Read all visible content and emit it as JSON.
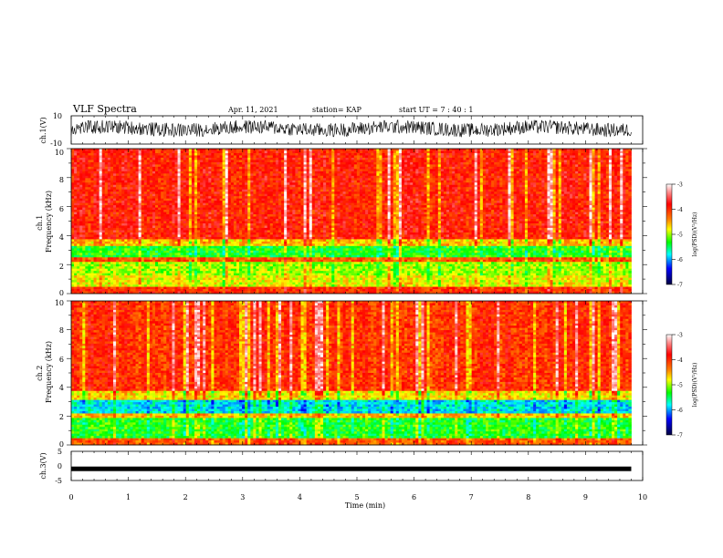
{
  "header": {
    "title": "VLF Spectra",
    "date": "Apr. 11, 2021",
    "station": "station= KAP",
    "start": "start  UT =   7 : 40 : 1"
  },
  "chart_data": [
    {
      "type": "line",
      "id": "ch1_waveform",
      "ylabel": "ch.1(V)",
      "ylim": [
        -10,
        10
      ],
      "yticks": [
        "10",
        "-10"
      ],
      "xlim": [
        0,
        10
      ],
      "data_extent": [
        0,
        9.8
      ],
      "description_level": "dense noisy waveform mostly between -4 and 6 V"
    },
    {
      "type": "heatmap",
      "id": "ch1_spectrogram",
      "ylabel": "ch.1\nFrequency  (kHz)",
      "ylim": [
        0,
        10
      ],
      "yticks": [
        "0",
        "2",
        "4",
        "6",
        "8",
        "10"
      ],
      "xlim": [
        0,
        10
      ],
      "data_extent": [
        0,
        9.8
      ],
      "bands": [
        {
          "f_lo": 0.0,
          "f_hi": 0.5,
          "level": -4.0
        },
        {
          "f_lo": 0.5,
          "f_hi": 1.2,
          "level": -4.8
        },
        {
          "f_lo": 1.2,
          "f_hi": 2.2,
          "level": -5.0
        },
        {
          "f_lo": 2.2,
          "f_hi": 2.5,
          "level": -4.2
        },
        {
          "f_lo": 2.5,
          "f_hi": 3.3,
          "level": -5.3
        },
        {
          "f_lo": 3.3,
          "f_hi": 3.7,
          "level": -4.6
        },
        {
          "f_lo": 3.7,
          "f_hi": 10.0,
          "level": -3.9
        }
      ],
      "colorbar": {
        "label": "log(PSD)(V²/Hz)",
        "ticks": [
          "-3",
          "-4",
          "-5",
          "-6",
          "-7"
        ],
        "range": [
          -7,
          -3
        ]
      }
    },
    {
      "type": "heatmap",
      "id": "ch2_spectrogram",
      "ylabel": "ch.2\nFrequency  (kHz)",
      "ylim": [
        0,
        10
      ],
      "yticks": [
        "0",
        "2",
        "4",
        "6",
        "8",
        "10"
      ],
      "xlim": [
        0,
        10
      ],
      "data_extent": [
        0,
        9.8
      ],
      "bands": [
        {
          "f_lo": 0.0,
          "f_hi": 0.4,
          "level": -4.2
        },
        {
          "f_lo": 0.4,
          "f_hi": 1.9,
          "level": -5.3
        },
        {
          "f_lo": 1.9,
          "f_hi": 2.2,
          "level": -4.6
        },
        {
          "f_lo": 2.2,
          "f_hi": 3.2,
          "level": -5.8
        },
        {
          "f_lo": 3.2,
          "f_hi": 3.7,
          "level": -4.7
        },
        {
          "f_lo": 3.7,
          "f_hi": 10.0,
          "level": -4.0
        }
      ],
      "colorbar": {
        "label": "log(PSD)(V²/Hz)",
        "ticks": [
          "-3",
          "-4",
          "-5",
          "-6",
          "-7"
        ],
        "range": [
          -7,
          -3
        ]
      }
    },
    {
      "type": "line",
      "id": "ch3_waveform",
      "ylabel": "ch.3(V)",
      "ylim": [
        -5,
        5
      ],
      "yticks": [
        "5",
        "0",
        "-5"
      ],
      "xlim": [
        0,
        10
      ],
      "data_extent": [
        0,
        9.8
      ],
      "level": -1
    }
  ],
  "xaxis": {
    "label": "Time  (min)",
    "ticks": [
      "0",
      "1",
      "2",
      "3",
      "4",
      "5",
      "6",
      "7",
      "8",
      "9",
      "10"
    ]
  }
}
